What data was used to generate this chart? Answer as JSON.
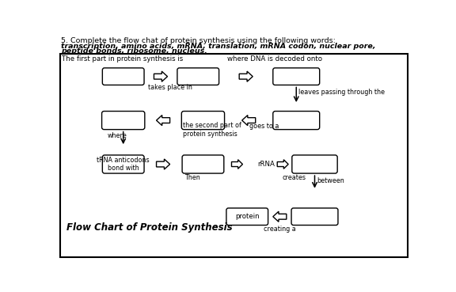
{
  "title_line1": "5. Complete the flow chat of protein synthesis using the following words:",
  "title_line2_bold": "transcription, amino acids, mRNA, translation, mRNA codon, nuclear pore,",
  "title_line3_bold": "peptide bonds, ribosome, nucleus.",
  "box_label": "Flow Chart of Protein Synthesis",
  "ann": {
    "top_left": "The first part in protein synthesis is",
    "top_right": "where DNA is decoded onto",
    "takes_place": "takes place in",
    "right_down": "leaves passing through the",
    "second_part": "the second part of\nprotein synthesis",
    "goes_to": "goes to a",
    "where": "where",
    "tRNA": "tRNA anticodons\nbond with",
    "then": "Then",
    "rRNA": "rRNA",
    "creates": "creates",
    "between": "between",
    "protein": "protein",
    "creating": "creating a"
  }
}
